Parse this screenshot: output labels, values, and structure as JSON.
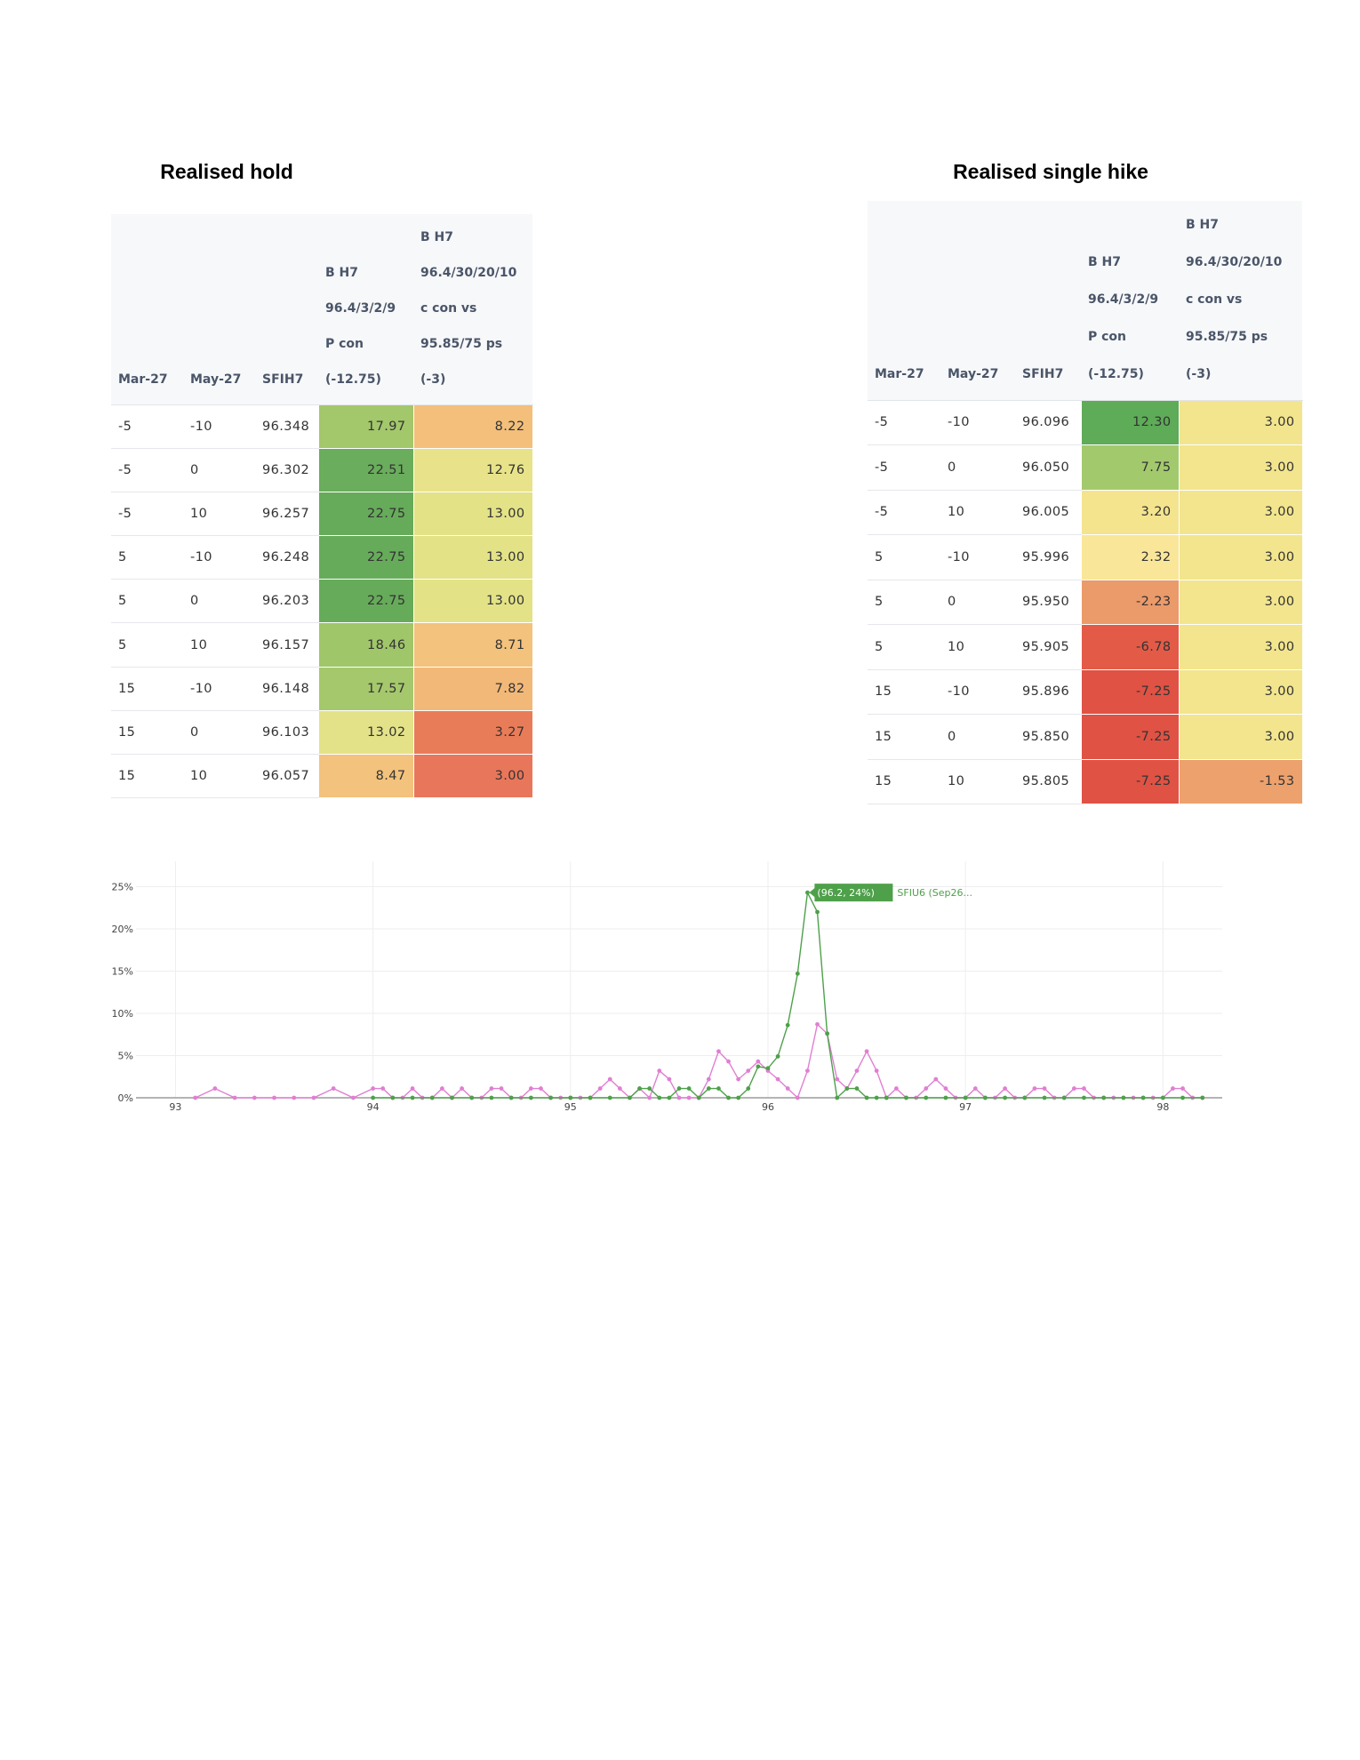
{
  "tables": [
    {
      "title": "Realised hold",
      "header": [
        "Mar-27",
        "May-27",
        "SFIH7",
        "B H7\n96.4/3/2/9\nP con\n(-12.75)",
        "B H7\n96.4/30/20/10\nc con vs\n95.85/75 ps\n(-3)"
      ],
      "rows": [
        [
          "-5",
          "-10",
          "96.348",
          "17.97",
          "8.22"
        ],
        [
          "-5",
          "0",
          "96.302",
          "22.51",
          "12.76"
        ],
        [
          "-5",
          "10",
          "96.257",
          "22.75",
          "13.00"
        ],
        [
          "5",
          "-10",
          "96.248",
          "22.75",
          "13.00"
        ],
        [
          "5",
          "0",
          "96.203",
          "22.75",
          "13.00"
        ],
        [
          "5",
          "10",
          "96.157",
          "18.46",
          "8.71"
        ],
        [
          "15",
          "-10",
          "96.148",
          "17.57",
          "7.82"
        ],
        [
          "15",
          "0",
          "96.103",
          "13.02",
          "3.27"
        ],
        [
          "15",
          "10",
          "96.057",
          "8.47",
          "3.00"
        ]
      ],
      "colors": [
        [
          "#a3c76b",
          "#f3bf7a"
        ],
        [
          "#6aad5c",
          "#e8e38a"
        ],
        [
          "#66ab5a",
          "#e3e287"
        ],
        [
          "#66ab5a",
          "#e3e287"
        ],
        [
          "#66ab5a",
          "#e3e287"
        ],
        [
          "#a0c66a",
          "#f3c27c"
        ],
        [
          "#a5c86c",
          "#f2b878"
        ],
        [
          "#e3e288",
          "#e97c58"
        ],
        [
          "#f3c27c",
          "#e8765a"
        ]
      ]
    },
    {
      "title": "Realised single hike",
      "header": [
        "Mar-27",
        "May-27",
        "SFIH7",
        "B H7\n96.4/3/2/9\nP con\n(-12.75)",
        "B H7\n96.4/30/20/10\nc con vs\n95.85/75 ps\n(-3)"
      ],
      "rows": [
        [
          "-5",
          "-10",
          "96.096",
          "12.30",
          "3.00"
        ],
        [
          "-5",
          "0",
          "96.050",
          "7.75",
          "3.00"
        ],
        [
          "-5",
          "10",
          "96.005",
          "3.20",
          "3.00"
        ],
        [
          "5",
          "-10",
          "95.996",
          "2.32",
          "3.00"
        ],
        [
          "5",
          "0",
          "95.950",
          "-2.23",
          "3.00"
        ],
        [
          "5",
          "10",
          "95.905",
          "-6.78",
          "3.00"
        ],
        [
          "15",
          "-10",
          "95.896",
          "-7.25",
          "3.00"
        ],
        [
          "15",
          "0",
          "95.850",
          "-7.25",
          "3.00"
        ],
        [
          "15",
          "10",
          "95.805",
          "-7.25",
          "-1.53"
        ]
      ],
      "colors": [
        [
          "#5eab58",
          "#f2e58e"
        ],
        [
          "#a3c96d",
          "#f2e58e"
        ],
        [
          "#f4e48e",
          "#f2e58e"
        ],
        [
          "#fae699",
          "#f2e58e"
        ],
        [
          "#eb9a6a",
          "#f2e58e"
        ],
        [
          "#e35b47",
          "#f2e58e"
        ],
        [
          "#e05244",
          "#f2e58e"
        ],
        [
          "#e05244",
          "#f2e58e"
        ],
        [
          "#e05244",
          "#eda16d"
        ]
      ]
    }
  ],
  "chart_data": {
    "type": "line",
    "xlim": [
      92.8,
      98.3
    ],
    "xticks": [
      93,
      94,
      95,
      96,
      97,
      98
    ],
    "ylim": [
      0,
      28
    ],
    "yticks": [
      {
        "value": 0,
        "label": "0%"
      },
      {
        "value": 5,
        "label": "5%"
      },
      {
        "value": 10,
        "label": "10%"
      },
      {
        "value": 15,
        "label": "15%"
      },
      {
        "value": 20,
        "label": "20%"
      },
      {
        "value": 25,
        "label": "25%"
      }
    ],
    "grid": true,
    "series": [
      {
        "color": "#e07fd2",
        "x": [
          93.1,
          93.2,
          93.3,
          93.4,
          93.5,
          93.6,
          93.7,
          93.8,
          93.9,
          94,
          94.05,
          94.1,
          94.15,
          94.2,
          94.25,
          94.3,
          94.35,
          94.4,
          94.45,
          94.5,
          94.55,
          94.6,
          94.65,
          94.7,
          94.75,
          94.8,
          94.85,
          94.9,
          94.95,
          95,
          95.05,
          95.1,
          95.15,
          95.2,
          95.25,
          95.3,
          95.35,
          95.4,
          95.45,
          95.5,
          95.55,
          95.6,
          95.65,
          95.7,
          95.75,
          95.8,
          95.85,
          95.9,
          95.95,
          96,
          96.05,
          96.1,
          96.15,
          96.2,
          96.25,
          96.3,
          96.35,
          96.4,
          96.45,
          96.5,
          96.55,
          96.6,
          96.65,
          96.7,
          96.75,
          96.8,
          96.85,
          96.9,
          96.95,
          97,
          97.05,
          97.1,
          97.15,
          97.2,
          97.25,
          97.3,
          97.35,
          97.4,
          97.45,
          97.5,
          97.55,
          97.6,
          97.65,
          97.7,
          97.75,
          97.8,
          97.85,
          97.9,
          97.95,
          98,
          98.05,
          98.1,
          98.15,
          98.2
        ],
        "values": [
          0,
          1.1,
          0,
          0,
          0,
          0,
          0,
          1.1,
          0,
          1.1,
          1.1,
          0,
          0,
          1.1,
          0,
          0,
          1.1,
          0,
          1.1,
          0,
          0,
          1.1,
          1.1,
          0,
          0,
          1.1,
          1.1,
          0,
          0,
          0,
          0,
          0,
          1.1,
          2.2,
          1.1,
          0,
          1.1,
          0,
          3.2,
          2.2,
          0,
          0,
          0,
          2.2,
          5.5,
          4.3,
          2.2,
          3.2,
          4.3,
          3.2,
          2.2,
          1.1,
          0,
          3.2,
          8.7,
          7.6,
          2.2,
          1.1,
          3.2,
          5.5,
          3.2,
          0,
          1.1,
          0,
          0,
          1.1,
          2.2,
          1.1,
          0,
          0,
          1.1,
          0,
          0,
          1.1,
          0,
          0,
          1.1,
          1.1,
          0,
          0,
          1.1,
          1.1,
          0,
          0,
          0,
          0,
          0,
          0,
          0,
          0,
          1.1,
          1.1,
          0,
          0
        ]
      },
      {
        "name": "SFIU6 (Sep26...",
        "color": "#4ea04a",
        "x": [
          94,
          94.1,
          94.2,
          94.3,
          94.4,
          94.5,
          94.6,
          94.7,
          94.8,
          94.9,
          95,
          95.1,
          95.2,
          95.3,
          95.35,
          95.4,
          95.45,
          95.5,
          95.55,
          95.6,
          95.65,
          95.7,
          95.75,
          95.8,
          95.85,
          95.9,
          95.95,
          96,
          96.05,
          96.1,
          96.15,
          96.2,
          96.25,
          96.3,
          96.35,
          96.4,
          96.45,
          96.5,
          96.55,
          96.6,
          96.7,
          96.8,
          96.9,
          97,
          97.1,
          97.2,
          97.3,
          97.4,
          97.5,
          97.6,
          97.7,
          97.8,
          97.9,
          98,
          98.1,
          98.2
        ],
        "values": [
          0,
          0,
          0,
          0,
          0,
          0,
          0,
          0,
          0,
          0,
          0,
          0,
          0,
          0,
          1.1,
          1.1,
          0,
          0,
          1.1,
          1.1,
          0,
          1.1,
          1.1,
          0,
          0,
          1.1,
          3.7,
          3.5,
          4.9,
          8.6,
          14.7,
          24.3,
          22,
          7.6,
          0,
          1.1,
          1.1,
          0,
          0,
          0,
          0,
          0,
          0,
          0,
          0,
          0,
          0,
          0,
          0,
          0,
          0,
          0,
          0,
          0,
          0,
          0
        ]
      }
    ],
    "annotations": [
      {
        "text": "(96.2, 24%)",
        "x": 96.2,
        "y": 24.3,
        "series": 1
      }
    ]
  }
}
